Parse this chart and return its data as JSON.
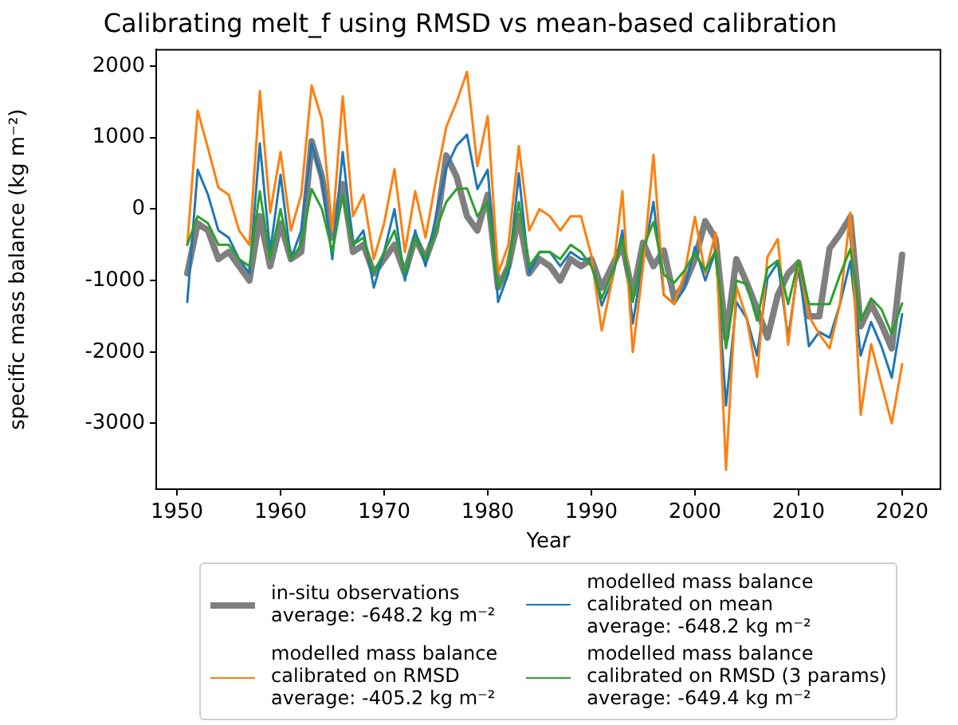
{
  "chart_data": {
    "type": "line",
    "title": "Calibrating melt_f using RMSD vs mean-based calibration",
    "xlabel": "Year",
    "ylabel": "specific mass balance (kg m⁻²)",
    "x": [
      1951,
      1952,
      1953,
      1954,
      1955,
      1956,
      1957,
      1958,
      1959,
      1960,
      1961,
      1962,
      1963,
      1964,
      1965,
      1966,
      1967,
      1968,
      1969,
      1970,
      1971,
      1972,
      1973,
      1974,
      1975,
      1976,
      1977,
      1978,
      1979,
      1980,
      1981,
      1982,
      1983,
      1984,
      1985,
      1986,
      1987,
      1988,
      1989,
      1990,
      1991,
      1992,
      1993,
      1994,
      1995,
      1996,
      1997,
      1998,
      1999,
      2000,
      2001,
      2002,
      2003,
      2004,
      2005,
      2006,
      2007,
      2008,
      2009,
      2010,
      2011,
      2012,
      2013,
      2014,
      2015,
      2016,
      2017,
      2018,
      2019,
      2020
    ],
    "series": [
      {
        "name": "in-situ observations\naverage: -648.2 kg m⁻²",
        "color": "#7f7f7f",
        "values": [
          -900,
          -200,
          -300,
          -700,
          -600,
          -800,
          -1000,
          -100,
          -800,
          -200,
          -700,
          -600,
          950,
          450,
          -400,
          350,
          -600,
          -500,
          -900,
          -700,
          -500,
          -900,
          -400,
          -700,
          -300,
          750,
          450,
          -100,
          -300,
          200,
          -1100,
          -800,
          -100,
          -900,
          -700,
          -800,
          -1000,
          -700,
          -800,
          -700,
          -1100,
          -800,
          -500,
          -1200,
          -470,
          -800,
          -580,
          -1250,
          -1050,
          -700,
          -170,
          -420,
          -1800,
          -700,
          -1030,
          -1400,
          -1800,
          -1200,
          -900,
          -750,
          -1500,
          -1500,
          -550,
          -350,
          -110,
          -1640,
          -1330,
          -1610,
          -1950,
          -640
        ]
      },
      {
        "name": "modelled mass balance\ncalibrated on mean\naverage: -648.2 kg m⁻²",
        "color": "#1f77b4",
        "values": [
          -1300,
          550,
          200,
          -300,
          -400,
          -700,
          -900,
          920,
          -600,
          480,
          -700,
          -300,
          920,
          420,
          -700,
          800,
          -500,
          -300,
          -1100,
          -600,
          0,
          -1000,
          -300,
          -800,
          -100,
          580,
          890,
          1040,
          280,
          550,
          -1300,
          -900,
          500,
          -900,
          -600,
          -600,
          -800,
          -600,
          -700,
          -700,
          -1350,
          -1000,
          -300,
          -1600,
          -700,
          100,
          -1200,
          -1330,
          -1110,
          -530,
          -1000,
          -580,
          -2750,
          -1300,
          -1530,
          -2050,
          -970,
          -750,
          -1800,
          -780,
          -1920,
          -1720,
          -1800,
          -1330,
          -730,
          -2050,
          -1580,
          -1920,
          -2360,
          -1470
        ]
      },
      {
        "name": "modelled mass balance\ncalibrated on RMSD\naverage: -405.2 kg m⁻²",
        "color": "#ff7f0e",
        "values": [
          -500,
          1380,
          850,
          300,
          200,
          -300,
          -500,
          1650,
          -50,
          800,
          -300,
          200,
          1730,
          1250,
          -300,
          1580,
          -100,
          200,
          -700,
          -200,
          560,
          -600,
          250,
          -400,
          400,
          1150,
          1500,
          1920,
          600,
          1300,
          -900,
          -500,
          880,
          -300,
          0,
          -100,
          -300,
          -100,
          -100,
          -650,
          -1700,
          -1000,
          250,
          -2000,
          -800,
          760,
          -1200,
          -1330,
          -900,
          -110,
          -900,
          -330,
          -3650,
          -1080,
          -1530,
          -2350,
          -670,
          -420,
          -1900,
          -720,
          -1500,
          -1750,
          -1950,
          -1330,
          -50,
          -2880,
          -1890,
          -2450,
          -3000,
          -2170
        ]
      },
      {
        "name": "modelled mass balance\ncalibrated on RMSD (3 params)\naverage: -649.4 kg m⁻²",
        "color": "#2ca02c",
        "values": [
          -500,
          -100,
          -200,
          -500,
          -500,
          -700,
          -800,
          250,
          -700,
          0,
          -700,
          -500,
          280,
          0,
          -600,
          200,
          -500,
          -400,
          -900,
          -600,
          -300,
          -900,
          -400,
          -700,
          -300,
          100,
          280,
          290,
          -100,
          100,
          -1100,
          -800,
          100,
          -800,
          -600,
          -600,
          -700,
          -500,
          -600,
          -800,
          -1250,
          -900,
          -420,
          -1300,
          -550,
          -180,
          -920,
          -1030,
          -860,
          -610,
          -860,
          -580,
          -1950,
          -1000,
          -1050,
          -1560,
          -830,
          -720,
          -1330,
          -720,
          -1330,
          -1330,
          -1330,
          -920,
          -560,
          -1560,
          -1250,
          -1400,
          -1750,
          -1320
        ]
      }
    ],
    "xlim": [
      1948,
      2023.7
    ],
    "xticks": [
      1950,
      1960,
      1970,
      1980,
      1990,
      2000,
      2010,
      2020
    ],
    "ylim": [
      -3920,
      2230
    ],
    "yticks": [
      -3000,
      -2000,
      -1000,
      0,
      1000,
      2000
    ],
    "grid": false,
    "legend": "bottom"
  }
}
